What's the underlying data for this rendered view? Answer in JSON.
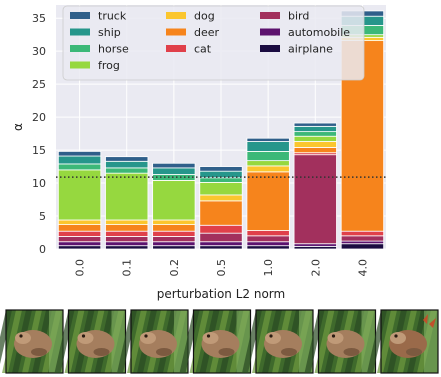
{
  "chart_data": {
    "type": "bar",
    "stacked": true,
    "title": "",
    "xlabel": "perturbation L2 norm",
    "ylabel": "α",
    "categories": [
      "0.0",
      "0.1",
      "0.2",
      "0.5",
      "1.0",
      "2.0",
      "4.0"
    ],
    "ylim": [
      0,
      37
    ],
    "yticks": [
      0,
      5,
      10,
      15,
      20,
      25,
      30,
      35
    ],
    "grid": true,
    "legend_position": "top-left",
    "reference_line": {
      "y": 10.9,
      "style": "dotted"
    },
    "series": [
      {
        "name": "airplane",
        "color": "#1b0c41",
        "values": [
          0.5,
          0.5,
          0.5,
          0.5,
          0.5,
          0.4,
          0.8
        ]
      },
      {
        "name": "automobile",
        "color": "#5c126e",
        "values": [
          0.6,
          0.6,
          0.6,
          0.6,
          0.6,
          0.4,
          0.4
        ]
      },
      {
        "name": "bird",
        "color": "#a2305d",
        "values": [
          0.8,
          0.8,
          0.8,
          1.3,
          0.9,
          13.5,
          0.8
        ]
      },
      {
        "name": "cat",
        "color": "#e0404a",
        "values": [
          0.8,
          0.8,
          0.8,
          1.2,
          0.8,
          0.3,
          0.7
        ]
      },
      {
        "name": "deer",
        "color": "#f6841c",
        "values": [
          1.0,
          1.0,
          1.0,
          3.7,
          8.9,
          0.8,
          28.9
        ]
      },
      {
        "name": "dog",
        "color": "#fbc62e",
        "values": [
          0.7,
          0.7,
          0.7,
          0.9,
          0.9,
          0.9,
          0.5
        ]
      },
      {
        "name": "frog",
        "color": "#96d83f",
        "values": [
          7.6,
          7.1,
          6.0,
          1.9,
          0.8,
          0.8,
          0.4
        ]
      },
      {
        "name": "horse",
        "color": "#3cb878",
        "values": [
          0.9,
          0.8,
          0.9,
          0.7,
          1.4,
          0.7,
          1.4
        ]
      },
      {
        "name": "ship",
        "color": "#26968b",
        "values": [
          1.2,
          1.0,
          1.0,
          1.0,
          1.5,
          0.8,
          1.4
        ]
      },
      {
        "name": "truck",
        "color": "#2f5f8a",
        "values": [
          0.7,
          0.7,
          0.7,
          0.7,
          0.5,
          0.5,
          0.8
        ]
      }
    ],
    "legend_order": [
      "truck",
      "dog",
      "bird",
      "ship",
      "deer",
      "automobile",
      "horse",
      "cat",
      "airplane",
      "frog"
    ]
  },
  "thumbnails": {
    "count": 7,
    "description_icon": "frog-image-icon"
  }
}
